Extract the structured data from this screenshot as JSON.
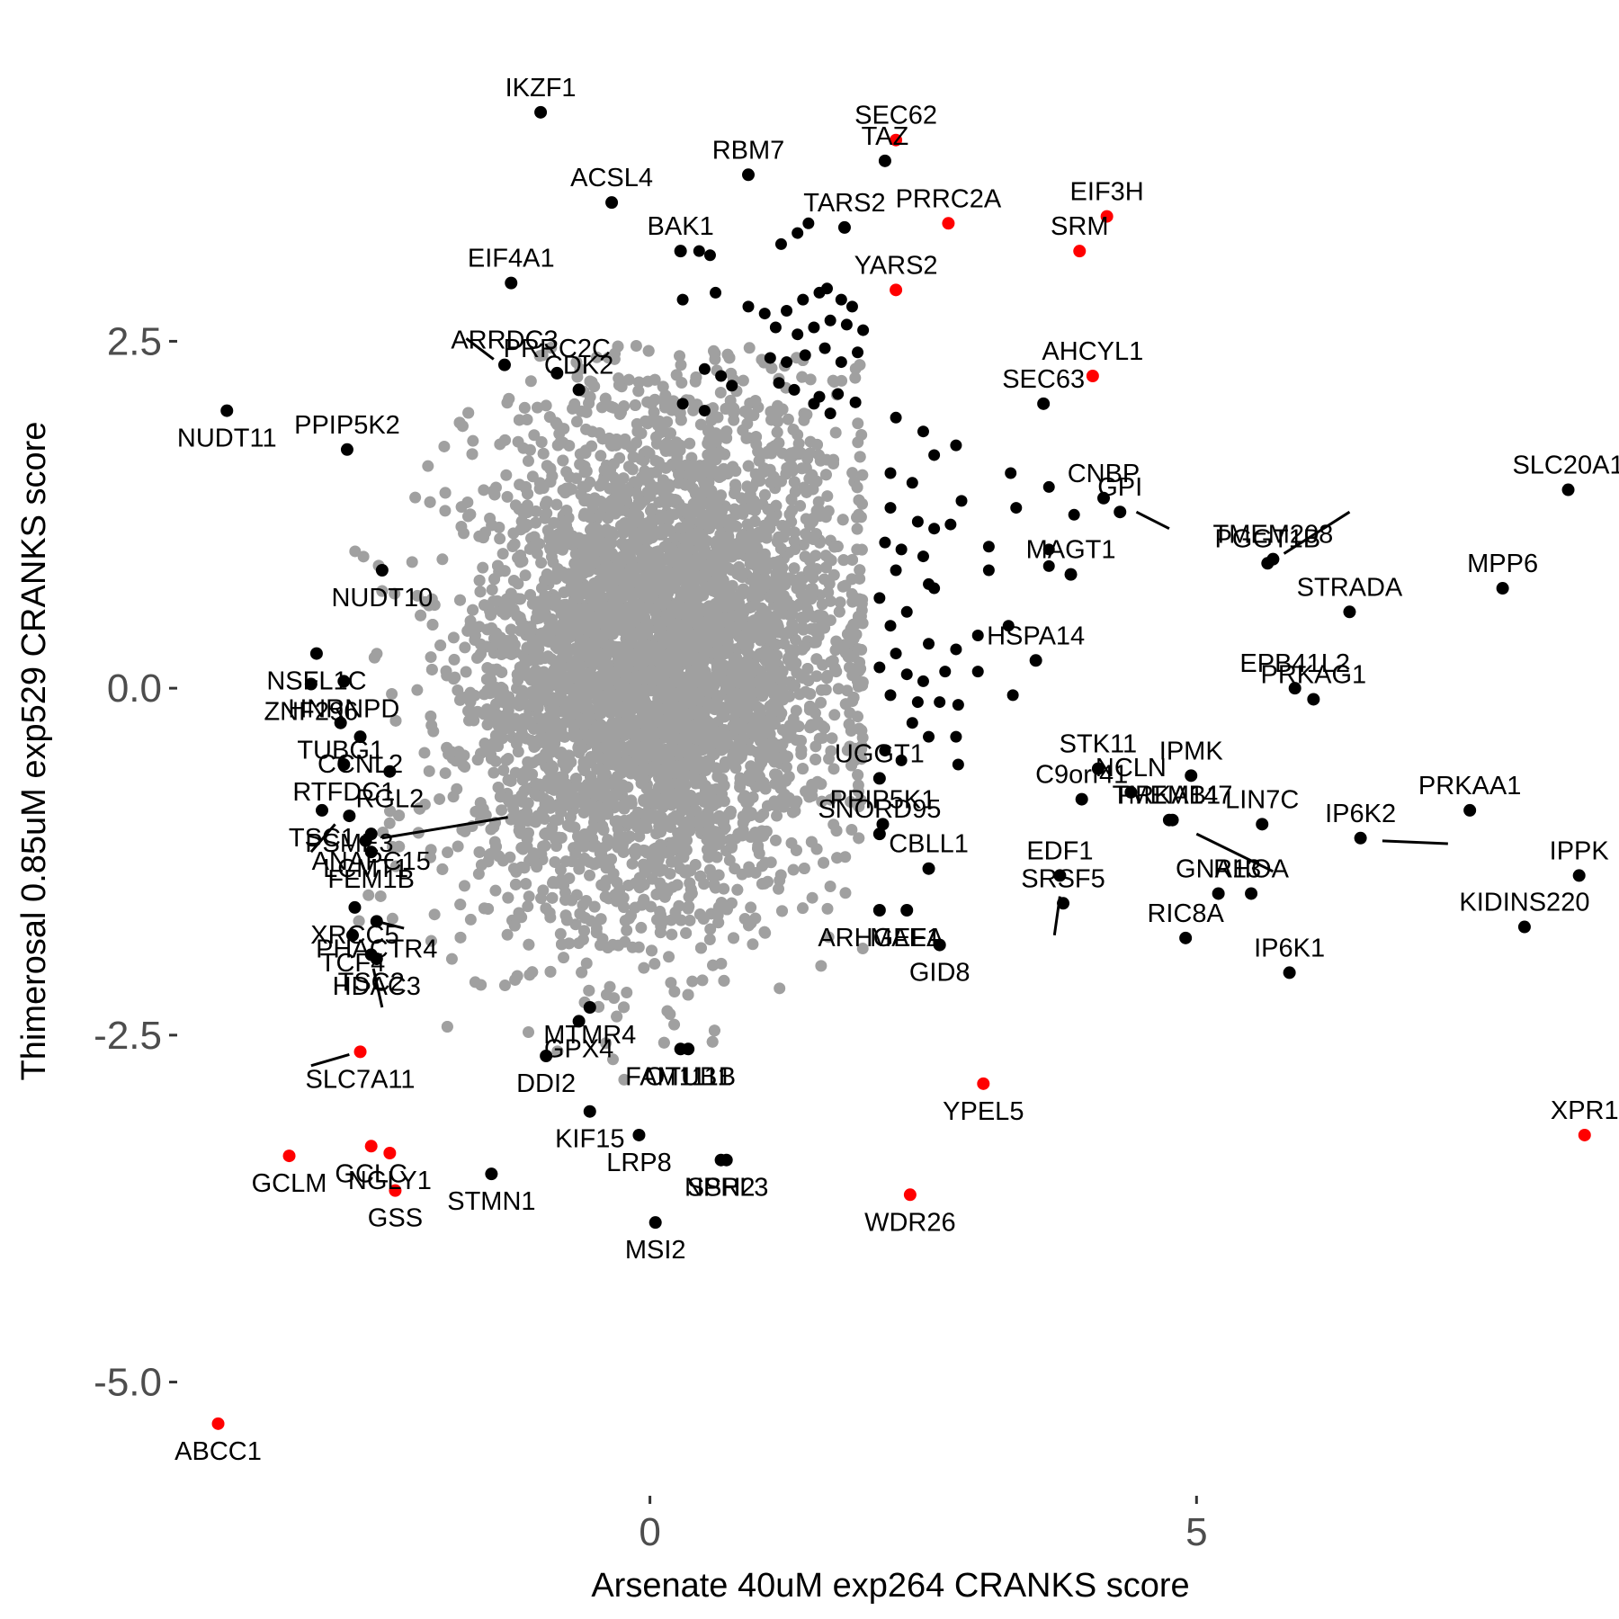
{
  "chart_data": {
    "type": "scatter",
    "xlabel": "Arsenate 40uM exp264 CRANKS score",
    "ylabel": "Thimerosal 0.85uM exp529 CRANKS score",
    "xlim": [
      -4.3,
      8.7
    ],
    "ylim": [
      -5.8,
      4.7
    ],
    "x_ticks": [
      {
        "value": 0,
        "label": "0"
      },
      {
        "value": 5,
        "label": "5"
      }
    ],
    "y_ticks": [
      {
        "value": 2.5,
        "label": "2.5"
      },
      {
        "value": 0,
        "label": "0.0"
      },
      {
        "value": -2.5,
        "label": "-2.5"
      },
      {
        "value": -5,
        "label": "-5.0"
      }
    ],
    "grid": false,
    "colors": {
      "background_genes": "#a0a0a0",
      "labeled_genes": "#000000",
      "highlighted_genes": "#ff0000"
    },
    "background_cloud": {
      "x_center": 0.05,
      "y_center": 0.2,
      "x_sd": 0.85,
      "y_sd": 0.9
    },
    "points": [
      {
        "label": "IKZF1",
        "x": -1.0,
        "y": 4.15,
        "group": "labeled"
      },
      {
        "label": "SEC62",
        "x": 2.25,
        "y": 3.95,
        "group": "highlighted"
      },
      {
        "label": "RBM7",
        "x": 0.9,
        "y": 3.7,
        "group": "labeled"
      },
      {
        "label": "TAZ",
        "x": 2.15,
        "y": 3.8,
        "group": "labeled"
      },
      {
        "label": "ACSL4",
        "x": -0.35,
        "y": 3.5,
        "group": "labeled"
      },
      {
        "label": "TARS2",
        "x": 1.78,
        "y": 3.32,
        "group": "labeled"
      },
      {
        "label": "PRRC2A",
        "x": 2.73,
        "y": 3.35,
        "group": "highlighted"
      },
      {
        "label": "EIF3H",
        "x": 4.18,
        "y": 3.4,
        "group": "highlighted"
      },
      {
        "label": "BAK1",
        "x": 0.28,
        "y": 3.15,
        "group": "labeled"
      },
      {
        "label": "SRM",
        "x": 3.93,
        "y": 3.15,
        "group": "highlighted"
      },
      {
        "label": "EIF4A1",
        "x": -1.27,
        "y": 2.92,
        "group": "labeled"
      },
      {
        "label": "YARS2",
        "x": 2.25,
        "y": 2.87,
        "group": "highlighted"
      },
      {
        "label": "ARRDC3",
        "x": -1.33,
        "y": 2.33,
        "group": "labeled"
      },
      {
        "label": "PRRC2C",
        "x": -0.85,
        "y": 2.27,
        "group": "labeled"
      },
      {
        "label": "AHCYL1",
        "x": 4.05,
        "y": 2.25,
        "group": "highlighted"
      },
      {
        "label": "NUDT11",
        "x": -3.87,
        "y": 2.0,
        "group": "labeled"
      },
      {
        "label": "CDK2",
        "x": -0.65,
        "y": 2.15,
        "group": "labeled"
      },
      {
        "label": "SEC63",
        "x": 3.6,
        "y": 2.05,
        "group": "labeled"
      },
      {
        "label": "PPIP5K2",
        "x": -2.77,
        "y": 1.72,
        "group": "labeled"
      },
      {
        "label": "SLC20A1",
        "x": 8.4,
        "y": 1.43,
        "group": "labeled"
      },
      {
        "label": "CNBP",
        "x": 4.15,
        "y": 1.37,
        "group": "labeled"
      },
      {
        "label": "GPI",
        "x": 4.3,
        "y": 1.27,
        "group": "labeled"
      },
      {
        "label": "PGGT1B",
        "x": 5.65,
        "y": 0.9,
        "group": "labeled"
      },
      {
        "label": "TMEM208",
        "x": 5.7,
        "y": 0.93,
        "group": "labeled"
      },
      {
        "label": "MPP6",
        "x": 7.8,
        "y": 0.72,
        "group": "labeled"
      },
      {
        "label": "NUDT10",
        "x": -2.45,
        "y": 0.85,
        "group": "labeled"
      },
      {
        "label": "MAGT1",
        "x": 3.85,
        "y": 0.82,
        "group": "labeled"
      },
      {
        "label": "STRADA",
        "x": 6.4,
        "y": 0.55,
        "group": "labeled"
      },
      {
        "label": "NSFL1C",
        "x": -3.05,
        "y": 0.25,
        "group": "labeled"
      },
      {
        "label": "HSPA14",
        "x": 3.53,
        "y": 0.2,
        "group": "labeled"
      },
      {
        "label": "ZNF296",
        "x": -3.1,
        "y": 0.03,
        "group": "labeled"
      },
      {
        "label": "HNRNPD",
        "x": -2.8,
        "y": 0.05,
        "group": "labeled"
      },
      {
        "label": "EPB41L2",
        "x": 5.9,
        "y": 0.0,
        "group": "labeled"
      },
      {
        "label": "PRKAG1",
        "x": 6.07,
        "y": -0.08,
        "group": "labeled"
      },
      {
        "label": "TUBG1",
        "x": -2.83,
        "y": -0.25,
        "group": "labeled"
      },
      {
        "label": "CCNL2",
        "x": -2.65,
        "y": -0.35,
        "group": "labeled"
      },
      {
        "label": "RTFDC1",
        "x": -2.8,
        "y": -0.55,
        "group": "labeled"
      },
      {
        "label": "RGL2",
        "x": -2.38,
        "y": -0.6,
        "group": "labeled"
      },
      {
        "label": "STK11",
        "x": 4.1,
        "y": -0.58,
        "group": "labeled"
      },
      {
        "label": "IPMK",
        "x": 4.95,
        "y": -0.63,
        "group": "labeled"
      },
      {
        "label": "UGGT1",
        "x": 2.1,
        "y": -0.65,
        "group": "labeled"
      },
      {
        "label": "C9orf41",
        "x": 3.95,
        "y": -0.8,
        "group": "labeled"
      },
      {
        "label": "NCLN",
        "x": 4.4,
        "y": -0.75,
        "group": "labeled"
      },
      {
        "label": "LIN7C",
        "x": 5.6,
        "y": -0.98,
        "group": "labeled"
      },
      {
        "label": "PRKAA1",
        "x": 7.5,
        "y": -0.88,
        "group": "labeled"
      },
      {
        "label": "TSC1",
        "x": -3.0,
        "y": -0.88,
        "group": "labeled"
      },
      {
        "label": "LCMT1",
        "x": -2.6,
        "y": -1.1,
        "group": "labeled"
      },
      {
        "label": "ANAPC15",
        "x": -2.55,
        "y": -1.05,
        "group": "labeled"
      },
      {
        "label": "PPIP5K1",
        "x": 2.13,
        "y": -0.98,
        "group": "labeled"
      },
      {
        "label": "PRKAB1",
        "x": 4.75,
        "y": -0.95,
        "group": "labeled"
      },
      {
        "label": "IP6K2",
        "x": 6.5,
        "y": -1.08,
        "group": "labeled"
      },
      {
        "label": "IPPK",
        "x": 8.5,
        "y": -1.35,
        "group": "labeled"
      },
      {
        "label": "PSME3",
        "x": -2.75,
        "y": -0.92,
        "group": "labeled"
      },
      {
        "label": "FEM1B",
        "x": -2.55,
        "y": -1.18,
        "group": "labeled"
      },
      {
        "label": "CBLL1",
        "x": 2.55,
        "y": -1.3,
        "group": "labeled"
      },
      {
        "label": "EDF1",
        "x": 3.75,
        "y": -1.35,
        "group": "labeled"
      },
      {
        "label": "TMEM147",
        "x": 4.78,
        "y": -0.95,
        "group": "labeled"
      },
      {
        "label": "SNORD95",
        "x": 2.1,
        "y": -1.05,
        "group": "labeled"
      },
      {
        "label": "MAEA",
        "x": 2.35,
        "y": -1.6,
        "group": "labeled"
      },
      {
        "label": "GNA13",
        "x": 5.2,
        "y": -1.48,
        "group": "labeled"
      },
      {
        "label": "RHOA",
        "x": 5.5,
        "y": -1.48,
        "group": "labeled"
      },
      {
        "label": "KIDINS220",
        "x": 8.0,
        "y": -1.72,
        "group": "labeled"
      },
      {
        "label": "XRCC5",
        "x": -2.7,
        "y": -1.58,
        "group": "labeled"
      },
      {
        "label": "PHACTR4",
        "x": -2.5,
        "y": -1.68,
        "group": "labeled"
      },
      {
        "label": "ARHGEF1",
        "x": 2.1,
        "y": -1.6,
        "group": "labeled"
      },
      {
        "label": "SRSF5",
        "x": 3.78,
        "y": -1.55,
        "group": "labeled"
      },
      {
        "label": "RIC8A",
        "x": 4.9,
        "y": -1.8,
        "group": "labeled"
      },
      {
        "label": "TCF4",
        "x": -2.72,
        "y": -1.78,
        "group": "labeled"
      },
      {
        "label": "TSC2",
        "x": -2.55,
        "y": -1.92,
        "group": "labeled"
      },
      {
        "label": "MTMR4",
        "x": -0.55,
        "y": -2.3,
        "group": "labeled"
      },
      {
        "label": "GID8",
        "x": 2.65,
        "y": -1.85,
        "group": "labeled"
      },
      {
        "label": "IP6K1",
        "x": 5.85,
        "y": -2.05,
        "group": "labeled"
      },
      {
        "label": "HDAC3",
        "x": -2.5,
        "y": -1.95,
        "group": "labeled"
      },
      {
        "label": "GPX4",
        "x": -0.65,
        "y": -2.4,
        "group": "labeled"
      },
      {
        "label": "FAM111B",
        "x": 0.28,
        "y": -2.6,
        "group": "labeled"
      },
      {
        "label": "SLC7A11",
        "x": -2.65,
        "y": -2.62,
        "group": "highlighted"
      },
      {
        "label": "OTUB1",
        "x": 0.35,
        "y": -2.6,
        "group": "labeled"
      },
      {
        "label": "DDI2",
        "x": -0.95,
        "y": -2.65,
        "group": "labeled"
      },
      {
        "label": "YPEL5",
        "x": 3.05,
        "y": -2.85,
        "group": "highlighted"
      },
      {
        "label": "KIF15",
        "x": -0.55,
        "y": -3.05,
        "group": "labeled"
      },
      {
        "label": "GCLC",
        "x": -2.55,
        "y": -3.3,
        "group": "highlighted"
      },
      {
        "label": "XPR1",
        "x": 8.55,
        "y": -3.22,
        "group": "highlighted"
      },
      {
        "label": "LRP8",
        "x": -0.1,
        "y": -3.22,
        "group": "labeled"
      },
      {
        "label": "NGLY1",
        "x": -2.38,
        "y": -3.35,
        "group": "highlighted"
      },
      {
        "label": "GCLM",
        "x": -3.3,
        "y": -3.37,
        "group": "highlighted"
      },
      {
        "label": "SSH2",
        "x": 0.65,
        "y": -3.4,
        "group": "labeled"
      },
      {
        "label": "STMN1",
        "x": -1.45,
        "y": -3.5,
        "group": "labeled"
      },
      {
        "label": "NPRL3",
        "x": 0.7,
        "y": -3.4,
        "group": "labeled"
      },
      {
        "label": "GSS",
        "x": -2.33,
        "y": -3.62,
        "group": "highlighted"
      },
      {
        "label": "WDR26",
        "x": 2.38,
        "y": -3.65,
        "group": "highlighted"
      },
      {
        "label": "MSI2",
        "x": 0.05,
        "y": -3.85,
        "group": "labeled"
      },
      {
        "label": "ABCC1",
        "x": -3.95,
        "y": -5.3,
        "group": "highlighted"
      }
    ],
    "unlabeled_hits": [
      [
        0.45,
        3.15
      ],
      [
        0.55,
        3.12
      ],
      [
        1.2,
        3.2
      ],
      [
        1.35,
        3.28
      ],
      [
        1.45,
        3.35
      ],
      [
        0.3,
        2.8
      ],
      [
        0.6,
        2.85
      ],
      [
        0.9,
        2.75
      ],
      [
        1.05,
        2.7
      ],
      [
        1.25,
        2.72
      ],
      [
        1.4,
        2.8
      ],
      [
        1.55,
        2.85
      ],
      [
        1.62,
        2.88
      ],
      [
        1.75,
        2.8
      ],
      [
        1.85,
        2.75
      ],
      [
        1.15,
        2.6
      ],
      [
        1.35,
        2.55
      ],
      [
        1.5,
        2.6
      ],
      [
        1.65,
        2.65
      ],
      [
        1.8,
        2.62
      ],
      [
        1.95,
        2.58
      ],
      [
        1.1,
        2.38
      ],
      [
        1.25,
        2.35
      ],
      [
        1.42,
        2.4
      ],
      [
        1.6,
        2.45
      ],
      [
        1.75,
        2.35
      ],
      [
        1.9,
        2.42
      ],
      [
        0.5,
        2.3
      ],
      [
        0.65,
        2.25
      ],
      [
        0.75,
        2.18
      ],
      [
        1.18,
        2.2
      ],
      [
        1.32,
        2.15
      ],
      [
        1.55,
        2.1
      ],
      [
        1.72,
        2.12
      ],
      [
        0.3,
        2.05
      ],
      [
        0.5,
        2.0
      ],
      [
        1.5,
        2.05
      ],
      [
        1.65,
        1.98
      ],
      [
        1.88,
        2.06
      ],
      [
        2.25,
        1.95
      ],
      [
        2.5,
        1.85
      ],
      [
        2.8,
        1.75
      ],
      [
        2.6,
        1.68
      ],
      [
        2.2,
        1.55
      ],
      [
        2.4,
        1.48
      ],
      [
        3.3,
        1.55
      ],
      [
        3.65,
        1.45
      ],
      [
        2.85,
        1.35
      ],
      [
        2.2,
        1.3
      ],
      [
        2.45,
        1.2
      ],
      [
        2.6,
        1.15
      ],
      [
        2.75,
        1.18
      ],
      [
        3.35,
        1.3
      ],
      [
        3.88,
        1.25
      ],
      [
        2.15,
        1.05
      ],
      [
        2.3,
        1.0
      ],
      [
        2.5,
        0.95
      ],
      [
        3.1,
        1.02
      ],
      [
        3.65,
        1.0
      ],
      [
        2.25,
        0.85
      ],
      [
        2.55,
        0.75
      ],
      [
        3.1,
        0.85
      ],
      [
        3.65,
        0.88
      ],
      [
        2.1,
        0.65
      ],
      [
        2.35,
        0.55
      ],
      [
        2.6,
        0.72
      ],
      [
        3.28,
        0.45
      ],
      [
        2.2,
        0.45
      ],
      [
        2.25,
        0.25
      ],
      [
        2.55,
        0.32
      ],
      [
        2.8,
        0.28
      ],
      [
        3.0,
        0.38
      ],
      [
        2.1,
        0.15
      ],
      [
        2.35,
        0.1
      ],
      [
        2.5,
        0.05
      ],
      [
        2.7,
        0.12
      ],
      [
        3.0,
        0.12
      ],
      [
        3.32,
        -0.05
      ],
      [
        2.2,
        -0.05
      ],
      [
        2.45,
        -0.1
      ],
      [
        2.65,
        -0.1
      ],
      [
        2.82,
        -0.12
      ],
      [
        2.4,
        -0.25
      ],
      [
        2.55,
        -0.35
      ],
      [
        2.8,
        -0.35
      ],
      [
        2.15,
        -0.45
      ],
      [
        2.3,
        -0.52
      ],
      [
        2.82,
        -0.55
      ]
    ],
    "annotations": [
      {
        "label": "ARRDC3",
        "from": [
          -1.68,
          2.52
        ],
        "to": [
          -1.43,
          2.37
        ]
      },
      {
        "label": "TMEM208",
        "from": [
          6.4,
          1.27
        ],
        "to": [
          5.8,
          0.97
        ]
      },
      {
        "label": "PGGT1B",
        "from": [
          4.45,
          1.27
        ],
        "to": [
          4.75,
          1.15
        ]
      },
      {
        "label": "ANAPC15",
        "from": [
          -1.3,
          -0.93
        ],
        "to": [
          -2.45,
          -1.08
        ]
      },
      {
        "label": "PSME3",
        "from": [
          -3.1,
          -1.18
        ],
        "to": [
          -2.88,
          -0.98
        ]
      },
      {
        "label": "TMEM147",
        "from": [
          5.0,
          -1.05
        ],
        "to": [
          5.7,
          -1.32
        ]
      },
      {
        "label": "IP6K2",
        "from": [
          6.7,
          -1.1
        ],
        "to": [
          7.3,
          -1.12
        ]
      },
      {
        "label": "SRSF5",
        "from": [
          3.75,
          -1.5
        ],
        "to": [
          3.7,
          -1.78
        ]
      },
      {
        "label": "PHACTR4",
        "from": [
          -2.55,
          -1.67
        ],
        "to": [
          -2.25,
          -1.73
        ]
      },
      {
        "label": "HDAC3",
        "from": [
          -2.53,
          -2.02
        ],
        "to": [
          -2.45,
          -2.3
        ]
      },
      {
        "label": "SLC7A11",
        "from": [
          -3.1,
          -2.72
        ],
        "to": [
          -2.75,
          -2.64
        ]
      }
    ]
  }
}
